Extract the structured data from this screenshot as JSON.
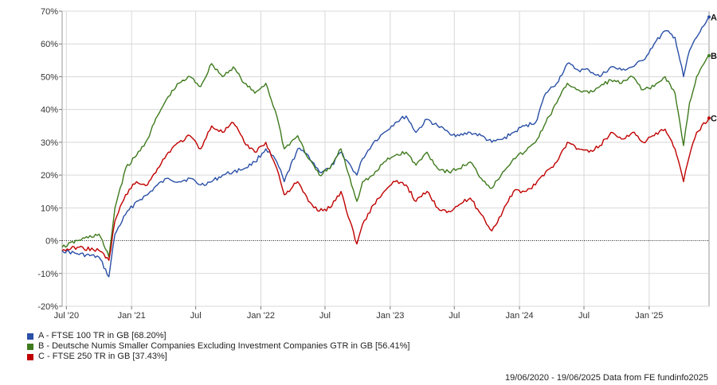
{
  "chart_data": {
    "type": "line",
    "grid": true,
    "ylim": [
      -20,
      70
    ],
    "y_ticks": [
      "-20%",
      "-10%",
      "0%",
      "10%",
      "20%",
      "30%",
      "40%",
      "50%",
      "60%",
      "70%"
    ],
    "y_tick_values": [
      -20,
      -10,
      0,
      10,
      20,
      30,
      40,
      50,
      60,
      70
    ],
    "x_ticks": [
      "Jul '20",
      "Jan '21",
      "Jul",
      "Jan '22",
      "Jul",
      "Jan '23",
      "Jul",
      "Jan '24",
      "Jul",
      "Jan '25"
    ],
    "x_tick_dates": [
      "2020-07-01",
      "2021-01-01",
      "2021-07-01",
      "2022-01-01",
      "2022-07-01",
      "2023-01-01",
      "2023-07-01",
      "2024-01-01",
      "2024-07-01",
      "2025-01-01"
    ],
    "x_range": [
      "2020-06-19",
      "2025-06-19"
    ],
    "series": [
      {
        "name": "A - FTSE 100 TR in GB [68.20%]",
        "end_label": "A",
        "color": "#2a4fa6",
        "x": [
          "2020-06-19",
          "2020-08-01",
          "2020-10-01",
          "2020-10-29",
          "2020-11-15",
          "2020-12-15",
          "2021-01-15",
          "2021-02-15",
          "2021-03-15",
          "2021-04-15",
          "2021-05-15",
          "2021-06-15",
          "2021-07-15",
          "2021-08-15",
          "2021-09-15",
          "2021-10-15",
          "2021-11-15",
          "2021-12-15",
          "2022-01-15",
          "2022-02-15",
          "2022-03-08",
          "2022-04-15",
          "2022-05-15",
          "2022-06-15",
          "2022-07-15",
          "2022-08-15",
          "2022-09-29",
          "2022-10-15",
          "2022-11-15",
          "2022-12-15",
          "2023-01-15",
          "2023-02-15",
          "2023-03-15",
          "2023-04-15",
          "2023-05-15",
          "2023-06-15",
          "2023-07-15",
          "2023-08-15",
          "2023-09-15",
          "2023-10-15",
          "2023-11-15",
          "2023-12-15",
          "2024-01-15",
          "2024-02-15",
          "2024-03-15",
          "2024-04-15",
          "2024-05-15",
          "2024-06-15",
          "2024-07-15",
          "2024-08-15",
          "2024-09-15",
          "2024-10-15",
          "2024-11-15",
          "2024-12-15",
          "2025-01-15",
          "2025-02-15",
          "2025-03-15",
          "2025-04-08",
          "2025-04-25",
          "2025-05-15",
          "2025-06-19"
        ],
        "y": [
          -3,
          -4,
          -5,
          -11,
          2,
          8,
          12,
          14,
          17,
          19,
          18,
          19,
          17,
          18,
          20,
          21,
          22,
          24,
          28,
          24,
          18,
          28,
          26,
          21,
          22,
          27,
          20,
          25,
          30,
          33,
          36,
          38,
          33,
          37,
          35,
          33,
          32,
          33,
          32,
          30,
          31,
          33,
          35,
          36,
          45,
          48,
          54,
          52,
          52,
          50,
          53,
          52,
          53,
          55,
          60,
          64,
          62,
          50,
          58,
          62,
          68.2
        ]
      },
      {
        "name": "B - Deutsche Numis Smaller Companies Excluding Investment Companies GTR in GB [56.41%]",
        "end_label": "B",
        "color": "#3e7a1d",
        "x": [
          "2020-06-19",
          "2020-08-01",
          "2020-10-01",
          "2020-10-29",
          "2020-11-15",
          "2020-12-15",
          "2021-01-15",
          "2021-02-15",
          "2021-03-15",
          "2021-04-15",
          "2021-05-15",
          "2021-06-15",
          "2021-07-15",
          "2021-08-15",
          "2021-09-15",
          "2021-10-15",
          "2021-11-15",
          "2021-12-15",
          "2022-01-15",
          "2022-02-15",
          "2022-03-08",
          "2022-04-15",
          "2022-05-15",
          "2022-06-15",
          "2022-07-15",
          "2022-08-15",
          "2022-09-29",
          "2022-10-15",
          "2022-11-15",
          "2022-12-15",
          "2023-01-15",
          "2023-02-15",
          "2023-03-15",
          "2023-04-15",
          "2023-05-15",
          "2023-06-15",
          "2023-07-15",
          "2023-08-15",
          "2023-09-15",
          "2023-10-15",
          "2023-11-15",
          "2023-12-15",
          "2024-01-15",
          "2024-02-15",
          "2024-03-15",
          "2024-04-15",
          "2024-05-15",
          "2024-06-15",
          "2024-07-15",
          "2024-08-15",
          "2024-09-15",
          "2024-10-15",
          "2024-11-15",
          "2024-12-15",
          "2025-01-15",
          "2025-02-15",
          "2025-03-15",
          "2025-04-08",
          "2025-04-25",
          "2025-05-15",
          "2025-06-19"
        ],
        "y": [
          -2,
          0,
          2,
          -5,
          10,
          22,
          26,
          31,
          38,
          44,
          48,
          50,
          47,
          54,
          50,
          53,
          48,
          45,
          48,
          38,
          28,
          32,
          25,
          20,
          22,
          28,
          12,
          18,
          20,
          24,
          26,
          27,
          23,
          27,
          22,
          21,
          22,
          24,
          19,
          16,
          21,
          25,
          27,
          30,
          36,
          42,
          48,
          46,
          45,
          47,
          49,
          48,
          50,
          46,
          47,
          50,
          45,
          29,
          42,
          50,
          56.4
        ]
      },
      {
        "name": "C - FTSE 250 TR in GB [37.43%]",
        "end_label": "C",
        "color": "#c00000",
        "x": [
          "2020-06-19",
          "2020-08-01",
          "2020-10-01",
          "2020-10-29",
          "2020-11-15",
          "2020-12-15",
          "2021-01-15",
          "2021-02-15",
          "2021-03-15",
          "2021-04-15",
          "2021-05-15",
          "2021-06-15",
          "2021-07-15",
          "2021-08-15",
          "2021-09-15",
          "2021-10-15",
          "2021-11-15",
          "2021-12-15",
          "2022-01-15",
          "2022-02-15",
          "2022-03-08",
          "2022-04-15",
          "2022-05-15",
          "2022-06-15",
          "2022-07-15",
          "2022-08-15",
          "2022-09-29",
          "2022-10-15",
          "2022-11-15",
          "2022-12-15",
          "2023-01-15",
          "2023-02-15",
          "2023-03-15",
          "2023-04-15",
          "2023-05-15",
          "2023-06-15",
          "2023-07-15",
          "2023-08-15",
          "2023-09-15",
          "2023-10-15",
          "2023-11-15",
          "2023-12-15",
          "2024-01-15",
          "2024-02-15",
          "2024-03-15",
          "2024-04-15",
          "2024-05-15",
          "2024-06-15",
          "2024-07-15",
          "2024-08-15",
          "2024-09-15",
          "2024-10-15",
          "2024-11-15",
          "2024-12-15",
          "2025-01-15",
          "2025-02-15",
          "2025-03-15",
          "2025-04-08",
          "2025-04-25",
          "2025-05-15",
          "2025-06-19"
        ],
        "y": [
          -3,
          -2,
          -3,
          -6,
          6,
          14,
          18,
          17,
          22,
          27,
          30,
          32,
          28,
          35,
          33,
          36,
          30,
          27,
          30,
          22,
          14,
          18,
          12,
          9,
          10,
          15,
          -1,
          5,
          11,
          15,
          18,
          17,
          12,
          15,
          10,
          9,
          11,
          13,
          8,
          3,
          9,
          15,
          15,
          17,
          21,
          24,
          30,
          28,
          27,
          29,
          33,
          31,
          33,
          30,
          32,
          34,
          28,
          18,
          26,
          33,
          37.4
        ]
      }
    ],
    "reference_line_y": 0,
    "legend_position": "bottom-left",
    "date_range_note": "19/06/2020 - 19/06/2025 Data from FE fundinfo2025"
  }
}
